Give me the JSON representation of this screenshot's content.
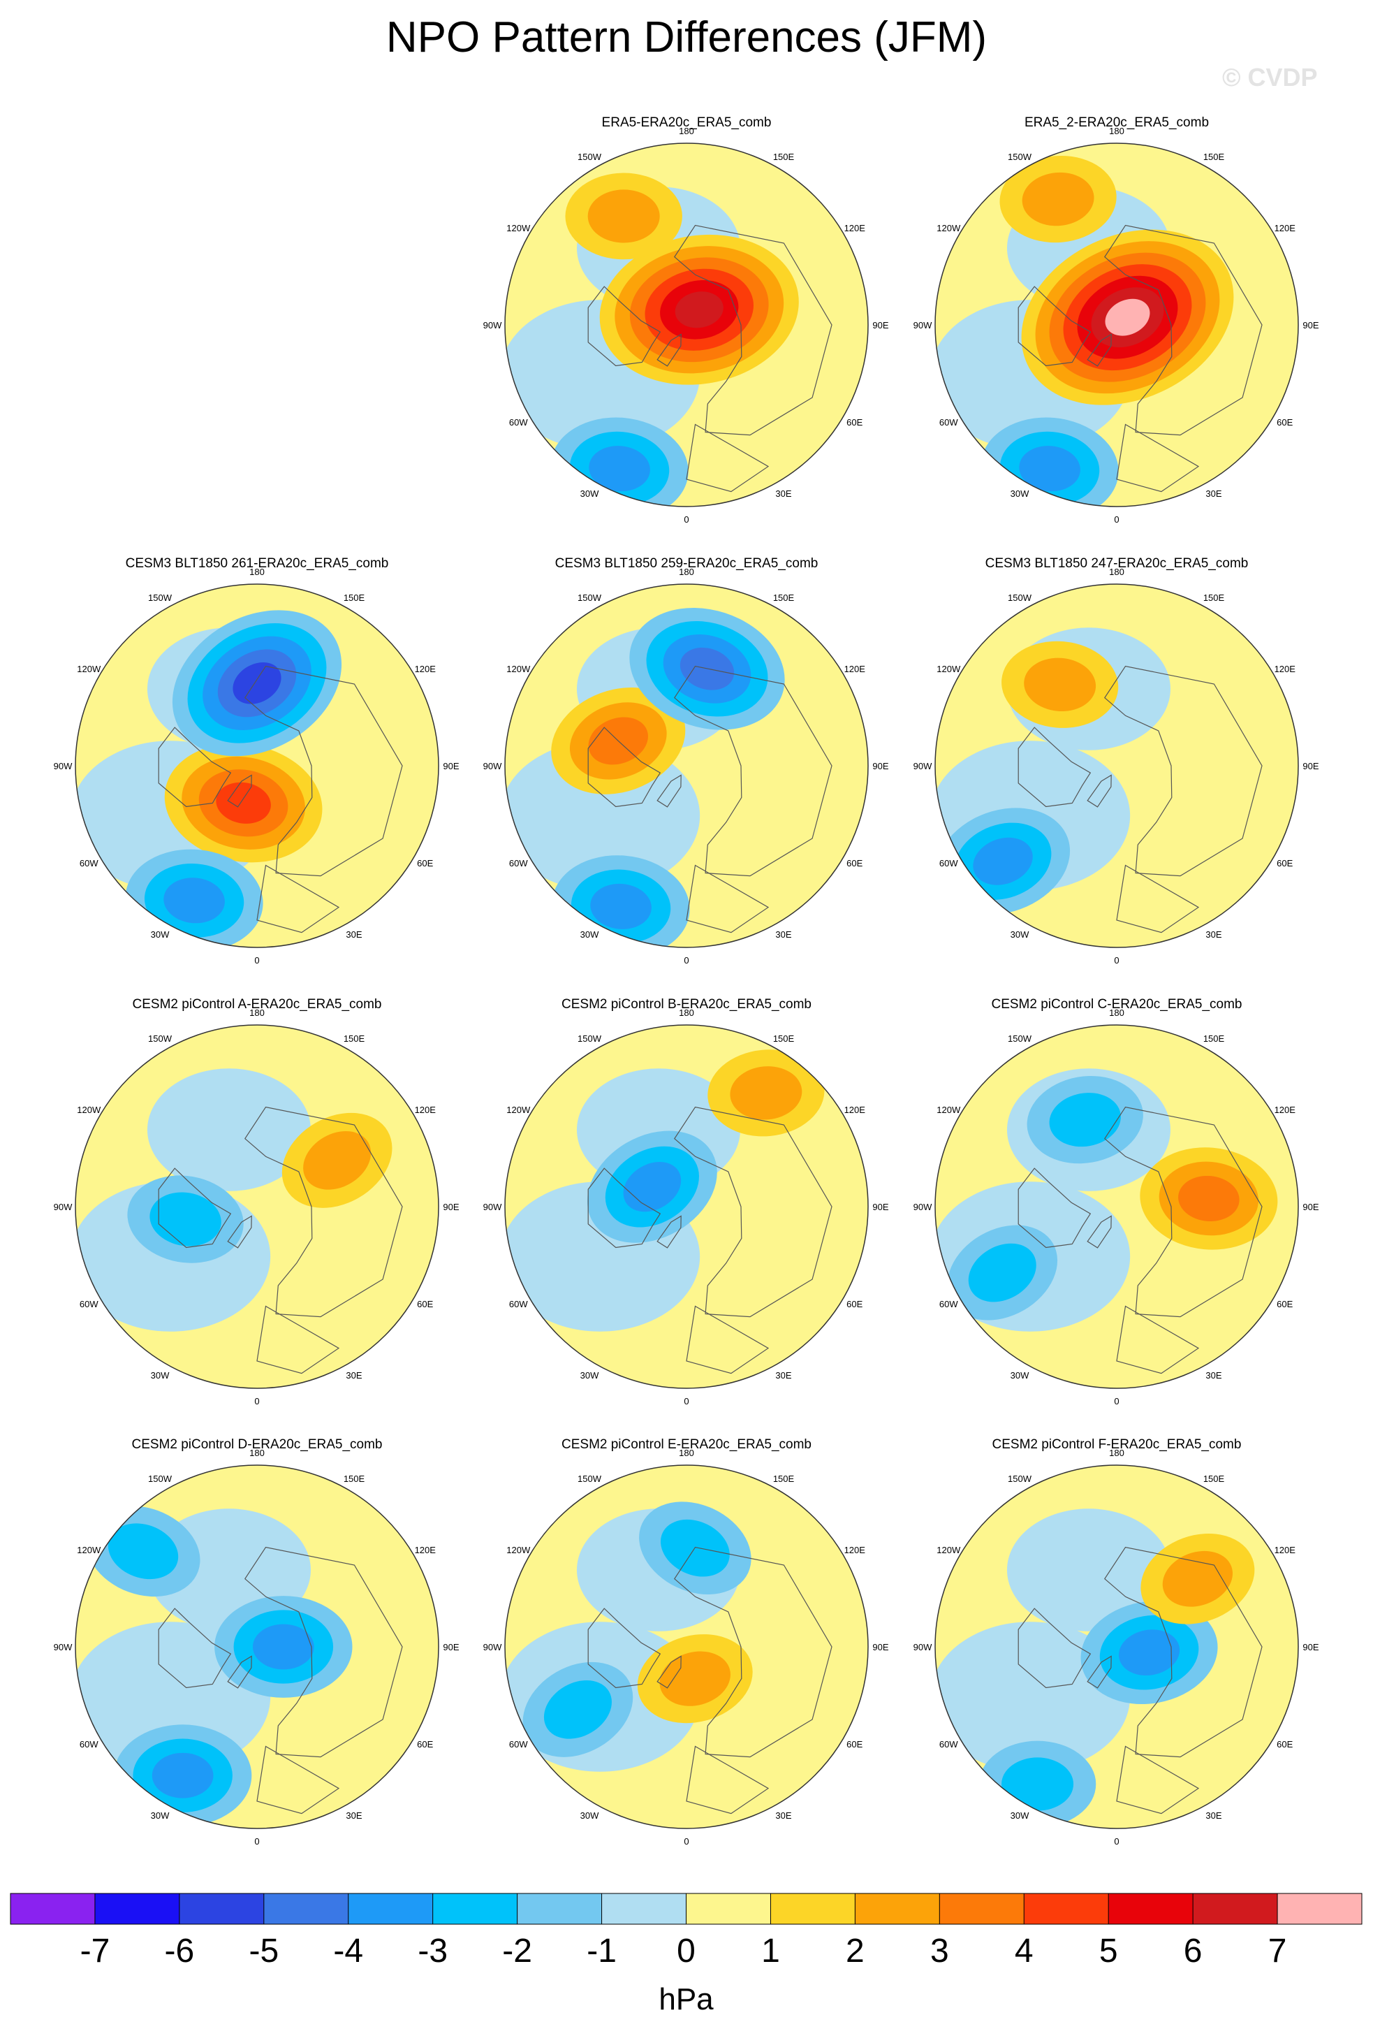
{
  "figure": {
    "title": "NPO Pattern Differences (JFM)",
    "watermark": "© CVDP",
    "units": "hPa"
  },
  "lon_labels": [
    "180",
    "150E",
    "120E",
    "90E",
    "60E",
    "30E",
    "0",
    "30W",
    "60W",
    "90W",
    "120W",
    "150W"
  ],
  "colorbar": {
    "ticks": [
      "-7",
      "-6",
      "-5",
      "-4",
      "-3",
      "-2",
      "-1",
      "0",
      "1",
      "2",
      "3",
      "4",
      "5",
      "6",
      "7"
    ],
    "colors": [
      "#8a22f0",
      "#1a10f5",
      "#2c44e2",
      "#3a78e6",
      "#1e9af7",
      "#00c2fa",
      "#73c8f0",
      "#b0def2",
      "#fdf68e",
      "#fcd527",
      "#fca309",
      "#fc7a09",
      "#fc3c0a",
      "#e8030a",
      "#d11a1e",
      "#ffb3b3"
    ]
  },
  "panels": [
    {
      "id": "p1",
      "title": "ERA5-ERA20c_ERA5_comb",
      "features": [
        {
          "kind": "pos",
          "level": 6,
          "lon": 140,
          "colat": 6
        },
        {
          "kind": "pos",
          "level": 2,
          "lon": 210,
          "colat": 38
        },
        {
          "kind": "neg",
          "level": 3,
          "lon": 335,
          "colat": 48
        }
      ]
    },
    {
      "id": "p2",
      "title": "ERA5_2-ERA20c_ERA5_comb",
      "features": [
        {
          "kind": "pos",
          "level": 7,
          "lon": 125,
          "colat": 4
        },
        {
          "kind": "pos",
          "level": 2,
          "lon": 205,
          "colat": 42
        },
        {
          "kind": "neg",
          "level": 3,
          "lon": 335,
          "colat": 48
        }
      ]
    },
    {
      "id": "p3",
      "title": "CESM3 BLT1850 261-ERA20c_ERA5_comb",
      "features": [
        {
          "kind": "pos",
          "level": 4,
          "lon": 340,
          "colat": 12
        },
        {
          "kind": "neg",
          "level": 5,
          "lon": 180,
          "colat": 25
        },
        {
          "kind": "neg",
          "level": 3,
          "lon": 335,
          "colat": 45
        }
      ]
    },
    {
      "id": "p4",
      "title": "CESM3 BLT1850 259-ERA20c_ERA5_comb",
      "features": [
        {
          "kind": "pos",
          "level": 3,
          "lon": 250,
          "colat": 22
        },
        {
          "kind": "neg",
          "level": 4,
          "lon": 168,
          "colat": 30
        },
        {
          "kind": "neg",
          "level": 3,
          "lon": 335,
          "colat": 47
        }
      ]
    },
    {
      "id": "p5",
      "title": "CESM3 BLT1850 247-ERA20c_ERA5_comb",
      "features": [
        {
          "kind": "pos",
          "level": 2,
          "lon": 215,
          "colat": 30
        },
        {
          "kind": "neg",
          "level": 3,
          "lon": 310,
          "colat": 45
        }
      ]
    },
    {
      "id": "p6",
      "title": "CESM2 piControl A-ERA20c_ERA5_comb",
      "features": [
        {
          "kind": "pos",
          "level": 2,
          "lon": 120,
          "colat": 28
        },
        {
          "kind": "neg",
          "level": 2,
          "lon": 280,
          "colat": 22
        }
      ]
    },
    {
      "id": "p7",
      "title": "CESM2 piControl B-ERA20c_ERA5_comb",
      "features": [
        {
          "kind": "pos",
          "level": 2,
          "lon": 145,
          "colat": 42
        },
        {
          "kind": "neg",
          "level": 3,
          "lon": 240,
          "colat": 12
        }
      ]
    },
    {
      "id": "p8",
      "title": "CESM2 piControl C-ERA20c_ERA5_comb",
      "features": [
        {
          "kind": "pos",
          "level": 3,
          "lon": 95,
          "colat": 28
        },
        {
          "kind": "neg",
          "level": 2,
          "lon": 300,
          "colat": 40
        },
        {
          "kind": "neg",
          "level": 2,
          "lon": 200,
          "colat": 28
        }
      ]
    },
    {
      "id": "p9",
      "title": "CESM2 piControl D-ERA20c_ERA5_comb",
      "features": [
        {
          "kind": "neg",
          "level": 3,
          "lon": 330,
          "colat": 45
        },
        {
          "kind": "neg",
          "level": 3,
          "lon": 90,
          "colat": 8
        },
        {
          "kind": "neg",
          "level": 2,
          "lon": 230,
          "colat": 45
        }
      ]
    },
    {
      "id": "p10",
      "title": "CESM2 piControl E-ERA20c_ERA5_comb",
      "features": [
        {
          "kind": "pos",
          "level": 2,
          "lon": 15,
          "colat": 10
        },
        {
          "kind": "neg",
          "level": 2,
          "lon": 300,
          "colat": 38
        },
        {
          "kind": "neg",
          "level": 2,
          "lon": 175,
          "colat": 30
        }
      ]
    },
    {
      "id": "p11",
      "title": "CESM2 piControl F-ERA20c_ERA5_comb",
      "features": [
        {
          "kind": "neg",
          "level": 3,
          "lon": 80,
          "colat": 10
        },
        {
          "kind": "pos",
          "level": 2,
          "lon": 130,
          "colat": 32
        },
        {
          "kind": "neg",
          "level": 2,
          "lon": 330,
          "colat": 48
        }
      ]
    }
  ]
}
